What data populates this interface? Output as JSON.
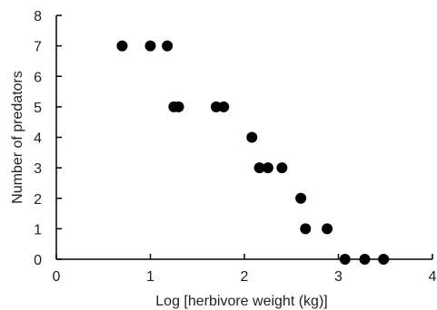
{
  "chart_data": {
    "type": "scatter",
    "title": "",
    "xlabel": "Log [herbivore weight (kg)]",
    "ylabel": "Number of predators",
    "xlim": [
      0,
      4
    ],
    "ylim": [
      0,
      8
    ],
    "xticks": [
      0,
      1,
      2,
      3,
      4
    ],
    "yticks": [
      0,
      1,
      2,
      3,
      4,
      5,
      6,
      7,
      8
    ],
    "grid": false,
    "legend": "none",
    "marker_color": "#000000",
    "series": [
      {
        "points": [
          {
            "x": 0.7,
            "y": 7
          },
          {
            "x": 1.0,
            "y": 7
          },
          {
            "x": 1.18,
            "y": 7
          },
          {
            "x": 1.25,
            "y": 5
          },
          {
            "x": 1.3,
            "y": 5
          },
          {
            "x": 1.7,
            "y": 5
          },
          {
            "x": 1.78,
            "y": 5
          },
          {
            "x": 2.08,
            "y": 4
          },
          {
            "x": 2.16,
            "y": 3
          },
          {
            "x": 2.25,
            "y": 3
          },
          {
            "x": 2.4,
            "y": 3
          },
          {
            "x": 2.6,
            "y": 2
          },
          {
            "x": 2.65,
            "y": 1
          },
          {
            "x": 2.88,
            "y": 1
          },
          {
            "x": 3.07,
            "y": 0
          },
          {
            "x": 3.28,
            "y": 0
          },
          {
            "x": 3.48,
            "y": 0
          }
        ]
      }
    ]
  }
}
